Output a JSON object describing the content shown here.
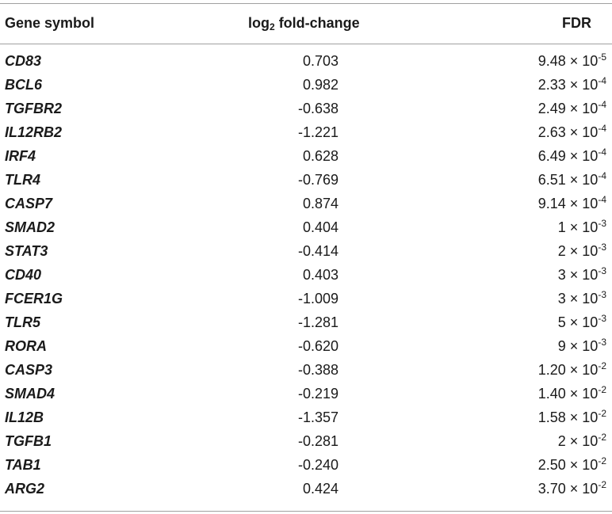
{
  "table": {
    "headers": {
      "gene": "Gene symbol",
      "fold_change_prefix": "log",
      "fold_change_sub": "2",
      "fold_change_suffix": " fold-change",
      "fdr": "FDR"
    },
    "rows": [
      {
        "gene": "CD83",
        "fold_change": "0.703",
        "fdr_mantissa": "9.48",
        "fdr_exponent": "-5"
      },
      {
        "gene": "BCL6",
        "fold_change": "0.982",
        "fdr_mantissa": "2.33",
        "fdr_exponent": "-4"
      },
      {
        "gene": "TGFBR2",
        "fold_change": "-0.638",
        "fdr_mantissa": "2.49",
        "fdr_exponent": "-4"
      },
      {
        "gene": "IL12RB2",
        "fold_change": "-1.221",
        "fdr_mantissa": "2.63",
        "fdr_exponent": "-4"
      },
      {
        "gene": "IRF4",
        "fold_change": "0.628",
        "fdr_mantissa": "6.49",
        "fdr_exponent": "-4"
      },
      {
        "gene": "TLR4",
        "fold_change": "-0.769",
        "fdr_mantissa": "6.51",
        "fdr_exponent": "-4"
      },
      {
        "gene": "CASP7",
        "fold_change": "0.874",
        "fdr_mantissa": "9.14",
        "fdr_exponent": "-4"
      },
      {
        "gene": "SMAD2",
        "fold_change": "0.404",
        "fdr_mantissa": "1",
        "fdr_exponent": "-3"
      },
      {
        "gene": "STAT3",
        "fold_change": "-0.414",
        "fdr_mantissa": "2",
        "fdr_exponent": "-3"
      },
      {
        "gene": "CD40",
        "fold_change": "0.403",
        "fdr_mantissa": "3",
        "fdr_exponent": "-3"
      },
      {
        "gene": "FCER1G",
        "fold_change": "-1.009",
        "fdr_mantissa": "3",
        "fdr_exponent": "-3"
      },
      {
        "gene": "TLR5",
        "fold_change": "-1.281",
        "fdr_mantissa": "5",
        "fdr_exponent": "-3"
      },
      {
        "gene": "RORA",
        "fold_change": "-0.620",
        "fdr_mantissa": "9",
        "fdr_exponent": "-3"
      },
      {
        "gene": "CASP3",
        "fold_change": "-0.388",
        "fdr_mantissa": "1.20",
        "fdr_exponent": "-2"
      },
      {
        "gene": "SMAD4",
        "fold_change": "-0.219",
        "fdr_mantissa": "1.40",
        "fdr_exponent": "-2"
      },
      {
        "gene": "IL12B",
        "fold_change": "-1.357",
        "fdr_mantissa": "1.58",
        "fdr_exponent": "-2"
      },
      {
        "gene": "TGFB1",
        "fold_change": "-0.281",
        "fdr_mantissa": "2",
        "fdr_exponent": "-2"
      },
      {
        "gene": "TAB1",
        "fold_change": "-0.240",
        "fdr_mantissa": "2.50",
        "fdr_exponent": "-2"
      },
      {
        "gene": "ARG2",
        "fold_change": "0.424",
        "fdr_mantissa": "3.70",
        "fdr_exponent": "-2"
      }
    ],
    "fdr_times": " × 10"
  }
}
